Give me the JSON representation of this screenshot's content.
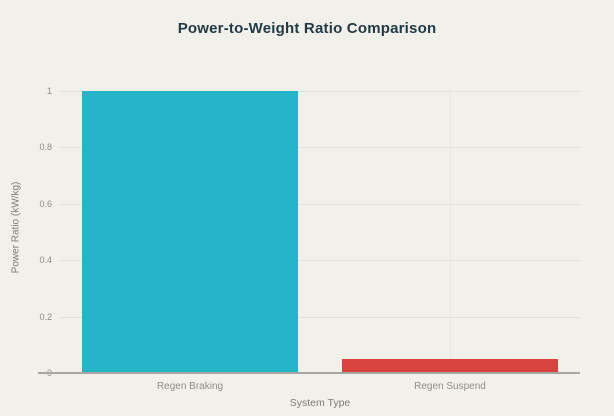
{
  "chart_data": {
    "type": "bar",
    "title": "Power-to-Weight Ratio Comparison",
    "xlabel": "System Type",
    "ylabel": "Power Ratio (kW/kg)",
    "categories": [
      "Regen Braking",
      "Regen Suspend"
    ],
    "values": [
      1.0,
      0.05
    ],
    "bar_colors": [
      "#25b5c8",
      "#d8423f"
    ],
    "ylim": [
      0,
      1
    ],
    "yticks": [
      0,
      0.2,
      0.4,
      0.6,
      0.8,
      1
    ],
    "ytick_labels": [
      "0",
      "0.2",
      "0.4",
      "0.6",
      "0.8",
      "1"
    ],
    "grid": true,
    "legend": false,
    "background": "#f1f0ea",
    "grid_color": "#e2e1da",
    "axis_line_color": "#a8a7a0",
    "tick_color": "#8e8d85",
    "axis_title_color": "#7d7c74",
    "title_color": "#223a44"
  }
}
